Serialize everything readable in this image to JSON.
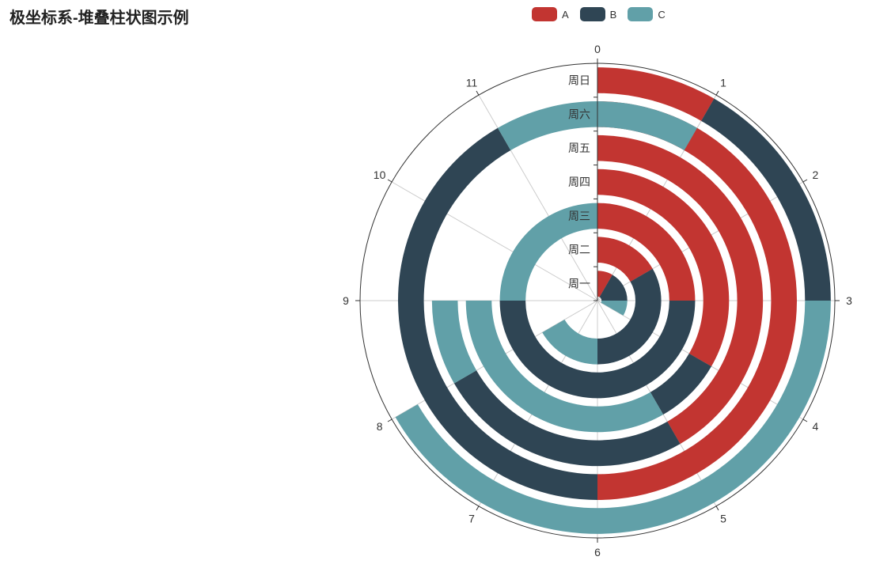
{
  "chart_data": {
    "type": "polar-stacked-bar",
    "title": "极坐标系-堆叠柱状图示例",
    "angle_axis": {
      "min": 0,
      "max": 12,
      "ticks": [
        "0",
        "1",
        "2",
        "3",
        "4",
        "5",
        "6",
        "7",
        "8",
        "9",
        "10",
        "11"
      ]
    },
    "radius_axis": {
      "categories": [
        "周一",
        "周二",
        "周三",
        "周四",
        "周五",
        "周六",
        "周日"
      ]
    },
    "legend": {
      "position": "top"
    },
    "series": [
      {
        "name": "A",
        "color": "#c23531",
        "values": [
          1,
          2,
          3,
          4,
          5,
          6,
          1
        ]
      },
      {
        "name": "B",
        "color": "#2f4554",
        "values": [
          2,
          4,
          6,
          1,
          3,
          5,
          2
        ]
      },
      {
        "name": "C",
        "color": "#61a0a8",
        "values": [
          1,
          2,
          3,
          4,
          1,
          2,
          5
        ]
      }
    ]
  }
}
